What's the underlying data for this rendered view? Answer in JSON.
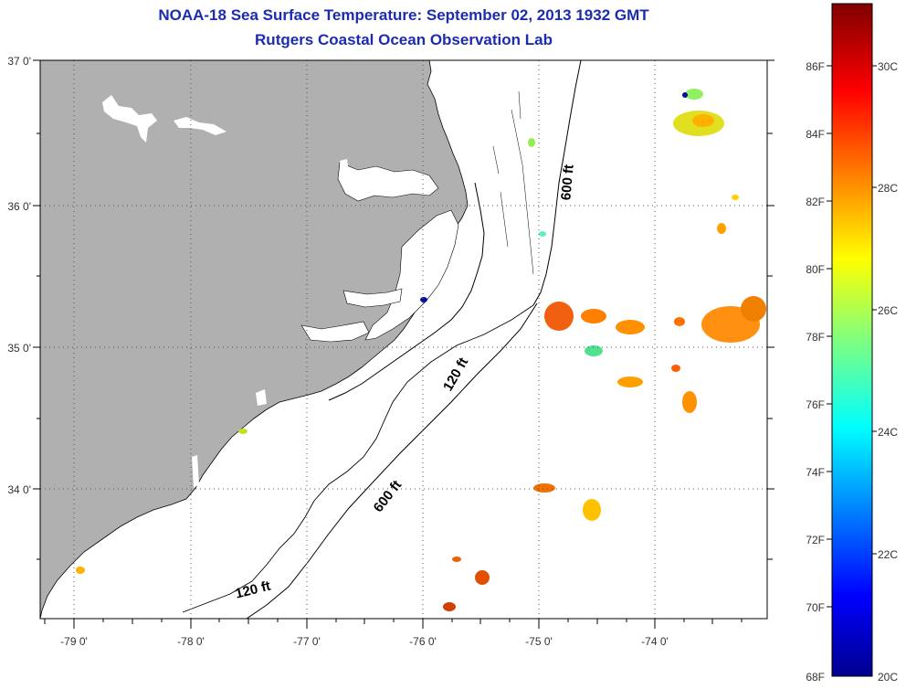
{
  "header": {
    "title": "NOAA-18 Sea Surface Temperature:  September 02, 2013 1932 GMT",
    "subtitle": "Rutgers Coastal Ocean Observation Lab"
  },
  "map": {
    "lat_labels": [
      "37 0'",
      "36 0'",
      "35 0'",
      "34 0'"
    ],
    "lon_labels": [
      "-79 0'",
      "-78 0'",
      "-77 0'",
      "-76 0'",
      "-75 0'",
      "-74 0'"
    ],
    "contour_labels": {
      "c600_north": "600 ft",
      "c120_mid": "120 ft",
      "c600_south": "600 ft",
      "c120_south": "120 ft"
    },
    "colors": {
      "land": "#b0b0b0",
      "water": "#ffffff",
      "grid": "#555555",
      "title": "#1c2cb0"
    }
  },
  "colorbar": {
    "fahrenheit_labels": [
      "86F",
      "84F",
      "82F",
      "80F",
      "78F",
      "76F",
      "74F",
      "72F",
      "70F",
      "68F"
    ],
    "celsius_labels": [
      "30C",
      "28C",
      "26C",
      "24C",
      "22C",
      "20C"
    ],
    "range_celsius": [
      20,
      31.1
    ],
    "colormap": "jet"
  }
}
